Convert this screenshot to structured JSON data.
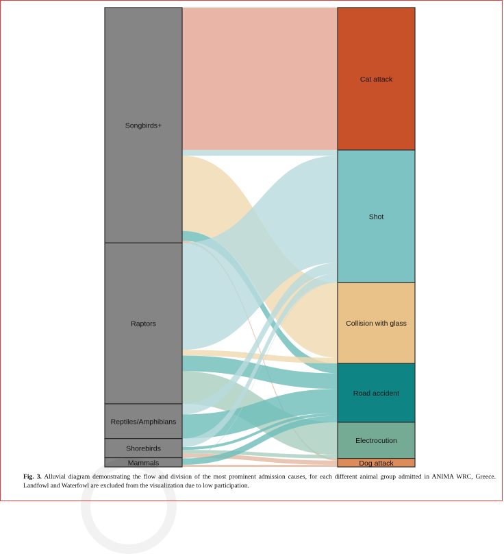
{
  "figure": {
    "caption_label": "Fig. 3.",
    "caption_text": "Alluvial diagram demonstrating the flow and division of the most prominent admission causes, for each different animal group admitted in ANIMA WRC, Greece. Landfowl and Waterfowl are excluded from the visualization due to low participation."
  },
  "chart_data": {
    "type": "alluvial",
    "colors": {
      "animal_node": "#858585",
      "Cat attack": "#c8512a",
      "Shot": "#7ec3c4",
      "Collision with glass": "#e9c28a",
      "Road accident": "#0e8584",
      "Electrocution": "#75aa94",
      "Dog attack": "#dc8b5b"
    },
    "flow_colors": {
      "Cat attack": "#e4a592",
      "Shot": "#b8dadd",
      "Collision with glass": "#efd9b1",
      "Road accident": "#6fbdba",
      "Electrocution": "#a9cfc0",
      "Dog attack": "#e4b9a2"
    },
    "animal_groups": [
      "Songbirds+",
      "Raptors",
      "Reptiles/Amphibians",
      "Shorebirds",
      "Mammals"
    ],
    "causes": [
      "Cat attack",
      "Shot",
      "Collision with glass",
      "Road accident",
      "Electrocution",
      "Dog attack"
    ],
    "flows": [
      {
        "source": "Songbirds+",
        "target": "Cat attack",
        "value": 201
      },
      {
        "source": "Songbirds+",
        "target": "Shot",
        "value": 8
      },
      {
        "source": "Songbirds+",
        "target": "Collision with glass",
        "value": 106
      },
      {
        "source": "Songbirds+",
        "target": "Road accident",
        "value": 14
      },
      {
        "source": "Songbirds+",
        "target": "Dog attack",
        "value": 3
      },
      {
        "source": "Raptors",
        "target": "Shot",
        "value": 151
      },
      {
        "source": "Raptors",
        "target": "Collision with glass",
        "value": 8
      },
      {
        "source": "Raptors",
        "target": "Road accident",
        "value": 22
      },
      {
        "source": "Raptors",
        "target": "Electrocution",
        "value": 46
      },
      {
        "source": "Reptiles/Amphibians",
        "target": "Shot",
        "value": 15
      },
      {
        "source": "Reptiles/Amphibians",
        "target": "Road accident",
        "value": 34
      },
      {
        "source": "Shorebirds",
        "target": "Shot",
        "value": 12
      },
      {
        "source": "Shorebirds",
        "target": "Road accident",
        "value": 4
      },
      {
        "source": "Shorebirds",
        "target": "Electrocution",
        "value": 5
      },
      {
        "source": "Shorebirds",
        "target": "Dog attack",
        "value": 6
      },
      {
        "source": "Mammals",
        "target": "Shot",
        "value": 1
      },
      {
        "source": "Mammals",
        "target": "Road accident",
        "value": 9
      },
      {
        "source": "Mammals",
        "target": "Dog attack",
        "value": 3
      }
    ]
  }
}
